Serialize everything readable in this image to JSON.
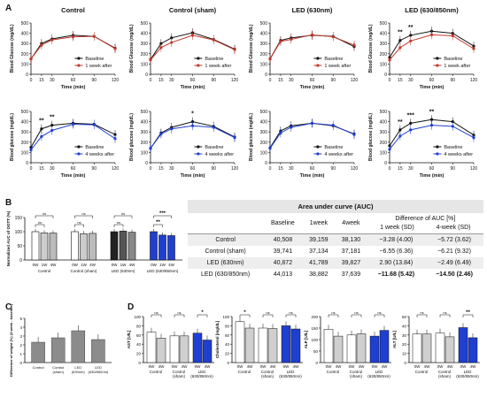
{
  "chart_data": [
    {
      "panel": "A",
      "type": "line",
      "title": "Control",
      "ylabel": "Blood Glucose (mg/dL)",
      "xlabel": "Time (min)",
      "x": [
        0,
        15,
        30,
        60,
        90,
        120
      ],
      "ylim": [
        0,
        500
      ],
      "yticks": [
        0,
        100,
        200,
        300,
        400,
        500
      ],
      "series": [
        {
          "name": "Baseline",
          "color": "#111111",
          "values": [
            150,
            300,
            345,
            380,
            370,
            255
          ]
        },
        {
          "name": "1 week after",
          "color": "#c0392b",
          "values": [
            150,
            285,
            335,
            365,
            370,
            250
          ]
        }
      ],
      "annotations": []
    },
    {
      "panel": "A",
      "type": "line",
      "title": "Control (sham)",
      "ylabel": "Blood Glucose (mg/dL)",
      "xlabel": "Time (min)",
      "x": [
        0,
        15,
        30,
        60,
        90,
        120
      ],
      "ylim": [
        0,
        500
      ],
      "yticks": [
        0,
        100,
        200,
        300,
        400,
        500
      ],
      "series": [
        {
          "name": "Baseline",
          "color": "#111111",
          "values": [
            145,
            300,
            355,
            405,
            340,
            245
          ]
        },
        {
          "name": "1 week after",
          "color": "#c0392b",
          "values": [
            140,
            260,
            310,
            380,
            335,
            240
          ]
        }
      ],
      "annotations": []
    },
    {
      "panel": "A",
      "type": "line",
      "title": "LED (630nm)",
      "ylabel": "Blood Glucose (mg/dL)",
      "xlabel": "Time (min)",
      "x": [
        0,
        15,
        30,
        60,
        90,
        120
      ],
      "ylim": [
        0,
        500
      ],
      "yticks": [
        0,
        100,
        200,
        300,
        400,
        500
      ],
      "series": [
        {
          "name": "Baseline",
          "color": "#111111",
          "values": [
            150,
            330,
            355,
            380,
            370,
            270
          ]
        },
        {
          "name": "1 week after",
          "color": "#c0392b",
          "values": [
            150,
            320,
            340,
            385,
            365,
            285
          ]
        }
      ],
      "annotations": []
    },
    {
      "panel": "A",
      "type": "line",
      "title": "LED (630/850nm)",
      "ylabel": "Blood Glucose (mg/dL)",
      "xlabel": "Time (min)",
      "x": [
        0,
        15,
        30,
        60,
        90,
        120
      ],
      "ylim": [
        0,
        500
      ],
      "yticks": [
        0,
        100,
        200,
        300,
        400,
        500
      ],
      "series": [
        {
          "name": "Baseline",
          "color": "#111111",
          "values": [
            165,
            330,
            380,
            420,
            400,
            275
          ]
        },
        {
          "name": "1 week after",
          "color": "#c0392b",
          "values": [
            140,
            260,
            325,
            385,
            375,
            250
          ]
        }
      ],
      "annotations": [
        {
          "x": 15,
          "text": "**"
        },
        {
          "x": 30,
          "text": "**"
        }
      ]
    },
    {
      "panel": "A",
      "type": "line",
      "title": "",
      "ylabel": "Blood glucose (mg/dL)",
      "xlabel": "Time (min)",
      "x": [
        0,
        15,
        30,
        60,
        90,
        120
      ],
      "ylim": [
        0,
        500
      ],
      "yticks": [
        0,
        100,
        200,
        300,
        400,
        500
      ],
      "series": [
        {
          "name": "Baseline",
          "color": "#111111",
          "values": [
            150,
            330,
            365,
            385,
            375,
            275
          ]
        },
        {
          "name": "4 weeks after",
          "color": "#1f3fd0",
          "values": [
            125,
            255,
            315,
            375,
            370,
            235
          ]
        }
      ],
      "annotations": [
        {
          "x": 15,
          "text": "**"
        },
        {
          "x": 30,
          "text": "**"
        }
      ]
    },
    {
      "panel": "A",
      "type": "line",
      "title": "",
      "ylabel": "Blood glucose (mg/dL)",
      "xlabel": "Time (min)",
      "x": [
        0,
        15,
        30,
        60,
        90,
        120
      ],
      "ylim": [
        0,
        500
      ],
      "yticks": [
        0,
        100,
        200,
        300,
        400,
        500
      ],
      "series": [
        {
          "name": "Baseline",
          "color": "#111111",
          "values": [
            140,
            290,
            345,
            400,
            355,
            250
          ]
        },
        {
          "name": "4 weeks after",
          "color": "#1f3fd0",
          "values": [
            140,
            280,
            330,
            360,
            345,
            245
          ]
        }
      ],
      "annotations": [
        {
          "x": 60,
          "text": "*"
        }
      ]
    },
    {
      "panel": "A",
      "type": "line",
      "title": "",
      "ylabel": "Blood glucose (mg/dL)",
      "xlabel": "Time (min)",
      "x": [
        0,
        15,
        30,
        60,
        90,
        120
      ],
      "ylim": [
        0,
        500
      ],
      "yticks": [
        0,
        100,
        200,
        300,
        400,
        500
      ],
      "series": [
        {
          "name": "Baseline",
          "color": "#111111",
          "values": [
            145,
            310,
            360,
            385,
            360,
            280
          ]
        },
        {
          "name": "4 weeks after",
          "color": "#1f3fd0",
          "values": [
            140,
            290,
            345,
            385,
            365,
            275
          ]
        }
      ],
      "annotations": []
    },
    {
      "panel": "A",
      "type": "line",
      "title": "",
      "ylabel": "Blood glucose (mg/dL)",
      "xlabel": "Time (min)",
      "x": [
        0,
        15,
        30,
        60,
        90,
        120
      ],
      "ylim": [
        0,
        500
      ],
      "yticks": [
        0,
        100,
        200,
        300,
        400,
        500
      ],
      "series": [
        {
          "name": "Baseline",
          "color": "#111111",
          "values": [
            165,
            320,
            385,
            420,
            400,
            270
          ]
        },
        {
          "name": "4 weeks after",
          "color": "#1f3fd0",
          "values": [
            130,
            260,
            320,
            365,
            355,
            245
          ]
        }
      ],
      "annotations": [
        {
          "x": 15,
          "text": "**"
        },
        {
          "x": 30,
          "text": "***"
        },
        {
          "x": 60,
          "text": "**"
        }
      ]
    },
    {
      "panel": "B",
      "type": "bar",
      "ylabel": "Normalized AUC of OGTT (%)",
      "ylim": [
        0,
        150
      ],
      "yticks": [
        0,
        50,
        100,
        150
      ],
      "groups": [
        {
          "name": "Control",
          "labels": [
            "0W",
            "1W",
            "4W"
          ],
          "values": [
            100,
            96,
            95
          ],
          "colors": [
            "#ffffff",
            "#cccccc",
            "#bbbbbb"
          ],
          "sig": [
            "ns",
            "ns"
          ]
        },
        {
          "name": "Control (sham)",
          "labels": [
            "0W",
            "1W",
            "4W"
          ],
          "values": [
            100,
            93,
            94
          ],
          "colors": [
            "#ffffff",
            "#cccccc",
            "#bbbbbb"
          ],
          "sig": [
            "ns",
            "ns"
          ]
        },
        {
          "name": "LED (630nm)",
          "labels": [
            "0W",
            "1W",
            "4W"
          ],
          "values": [
            100,
            102,
            98
          ],
          "colors": [
            "#222222",
            "#555555",
            "#888888"
          ],
          "sig": [
            "ns",
            "ns"
          ]
        },
        {
          "name": "LED (630/850nm)",
          "labels": [
            "0W",
            "1W",
            "4W"
          ],
          "values": [
            100,
            88,
            86
          ],
          "colors": [
            "#1f3fd0",
            "#1f3fd0",
            "#1f3fd0"
          ],
          "sig": [
            "**",
            "***"
          ]
        }
      ]
    },
    {
      "panel": "C",
      "type": "bar",
      "ylabel": "Difference of weight (%) (4 week - baseline)",
      "ylim": [
        0,
        5
      ],
      "yticks": [
        0,
        1,
        2,
        3,
        4,
        5
      ],
      "categories": [
        "Control",
        "Control (sham)",
        "LED (630nm)",
        "LED (630/850nm)"
      ],
      "values": [
        2.3,
        2.8,
        3.6,
        2.6
      ],
      "color": "#8c8c8c"
    },
    {
      "panel": "D",
      "type": "bar",
      "ylabel": "AST [U/L]",
      "ylim": [
        0,
        100
      ],
      "yticks": [
        0,
        20,
        40,
        60,
        80,
        100
      ],
      "groups": [
        {
          "name": "Control",
          "values": [
            66,
            53
          ]
        },
        {
          "name": "Control (sham)",
          "values": [
            58,
            58
          ]
        },
        {
          "name": "LED (630/850nm)",
          "values": [
            64,
            49
          ]
        }
      ],
      "sig": [
        "ns",
        "ns",
        "*"
      ]
    },
    {
      "panel": "D",
      "type": "bar",
      "ylabel": "Cholesterol [mg/dL]",
      "ylim": [
        0,
        100
      ],
      "yticks": [
        0,
        20,
        40,
        60,
        80,
        100
      ],
      "groups": [
        {
          "name": "Control",
          "values": [
            89,
            75
          ]
        },
        {
          "name": "Control (sham)",
          "values": [
            75,
            74
          ]
        },
        {
          "name": "LED (630/850nm)",
          "values": [
            80,
            73
          ]
        }
      ],
      "sig": [
        "*",
        "ns",
        "ns"
      ]
    },
    {
      "panel": "D",
      "type": "bar",
      "ylabel": "ALP [U/L]",
      "ylim": [
        0,
        200
      ],
      "yticks": [
        0,
        50,
        100,
        150,
        200
      ],
      "groups": [
        {
          "name": "Control",
          "values": [
            145,
            115
          ]
        },
        {
          "name": "Control (sham)",
          "values": [
            120,
            125
          ]
        },
        {
          "name": "LED (630/850nm)",
          "values": [
            115,
            140
          ]
        }
      ],
      "sig": [
        "ns",
        "ns",
        "ns"
      ]
    },
    {
      "panel": "D",
      "type": "bar",
      "ylabel": "ALT [U/L]",
      "ylim": [
        0,
        50
      ],
      "yticks": [
        0,
        10,
        20,
        30,
        40,
        50
      ],
      "groups": [
        {
          "name": "Control",
          "values": [
            31,
            31
          ]
        },
        {
          "name": "Control (sham)",
          "values": [
            32,
            28
          ]
        },
        {
          "name": "LED (630/850nm)",
          "values": [
            38,
            27
          ]
        }
      ],
      "sig": [
        "ns",
        "ns",
        "**"
      ]
    }
  ],
  "labels": {
    "A": "A",
    "B": "B",
    "C": "C",
    "D": "D"
  },
  "d_xlabels": [
    "0W",
    "4W"
  ],
  "d_groups": [
    "Control",
    "Control (sham)",
    "LED (630/850nm)"
  ],
  "table": {
    "title": "Area under curve (AUC)",
    "diff_header": "Difference of AUC [%]",
    "columns": [
      "Baseline",
      "1week",
      "4week",
      "1 week (SD)",
      "4-week (SD)"
    ],
    "rows": [
      {
        "name": "Control",
        "baseline": "40,508",
        "w1": "39,159",
        "w4": "38,130",
        "d1": "−3.28 (4.00)",
        "d4": "−5.72 (3.62)",
        "bold": false
      },
      {
        "name": "Control (sham)",
        "baseline": "39,741",
        "w1": "37,134",
        "w4": "37,181",
        "d1": "−6.55 (6.36)",
        "d4": "−6.21 (9.32)",
        "bold": false
      },
      {
        "name": "LED (630nm)",
        "baseline": "40,872",
        "w1": "41,789",
        "w4": "39,827",
        "d1": "2.90 (13.84)",
        "d4": "−2.49 (6.49)",
        "bold": false
      },
      {
        "name": "LED (630/850nm)",
        "baseline": "44,013",
        "w1": "38,882",
        "w4": "37,639",
        "d1": "−11.68 (5.42)",
        "d4": "−14.50 (2.46)",
        "bold": true
      }
    ]
  }
}
